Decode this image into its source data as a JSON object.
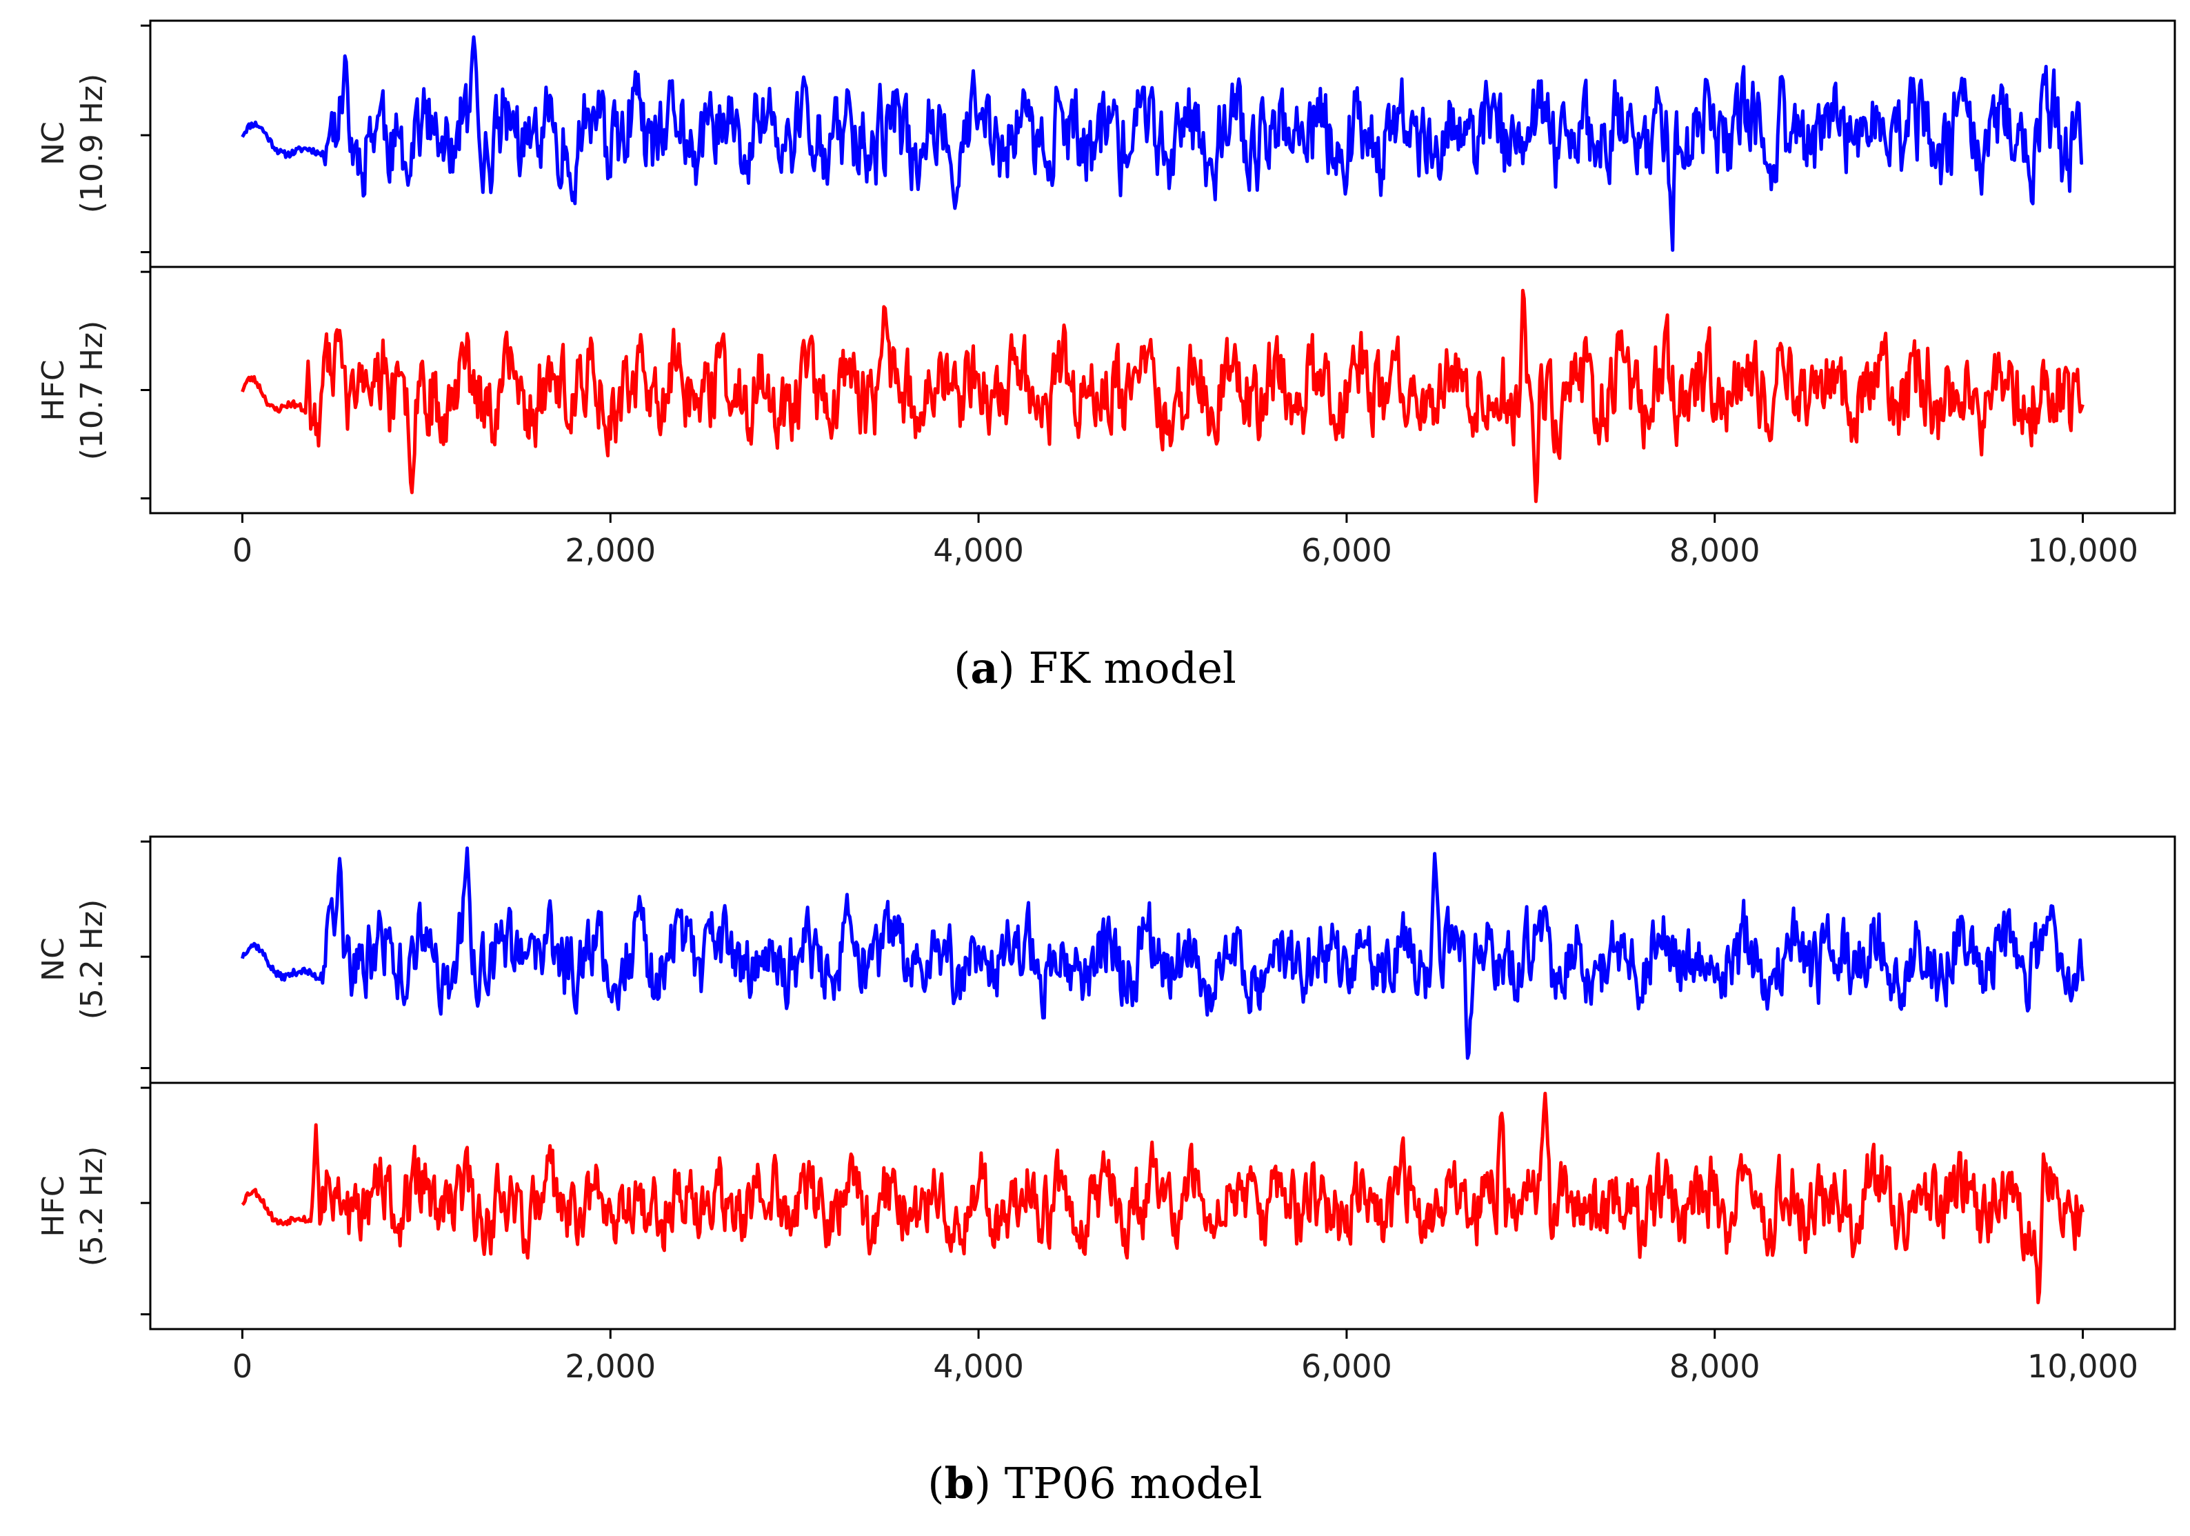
{
  "figures": [
    {
      "caption": {
        "letter": "a",
        "text": "FK model"
      },
      "x_ticks": [
        "0",
        "2,000",
        "4,000",
        "6,000",
        "8,000",
        "10,000"
      ],
      "panels": [
        {
          "name": "NC",
          "freq_label": "(10.9 Hz)",
          "color": "#0000ff"
        },
        {
          "name": "HFC",
          "freq_label": "(10.7 Hz)",
          "color": "#ff0000"
        }
      ]
    },
    {
      "caption": {
        "letter": "b",
        "text": "TP06 model"
      },
      "x_ticks": [
        "0",
        "2,000",
        "4,000",
        "6,000",
        "8,000",
        "10,000"
      ],
      "panels": [
        {
          "name": "NC",
          "freq_label": "(5.2 Hz)",
          "color": "#0000ff"
        },
        {
          "name": "HFC",
          "freq_label": "(5.2 Hz)",
          "color": "#ff0000"
        }
      ]
    }
  ],
  "chart_data": [
    {
      "type": "line",
      "title": "(a) FK model",
      "xlabel": "",
      "xlim": [
        -500,
        10500
      ],
      "x_ticks": [
        0,
        2000,
        4000,
        6000,
        8000,
        10000
      ],
      "x_range": [
        0,
        10000
      ],
      "series": [
        {
          "name": "NC (10.9 Hz)",
          "color": "#0000ff",
          "ylim": [
            -1.15,
            1.0
          ],
          "baseline": 0.0,
          "amplitude": 0.9,
          "seed": 11,
          "quiet_until": 450,
          "spikes": [
            [
              1260,
              0.95
            ],
            [
              7780,
              0.95
            ],
            [
              7770,
              -1.1
            ],
            [
              560,
              0.8
            ]
          ]
        },
        {
          "name": "HFC (10.7 Hz)",
          "color": "#ff0000",
          "ylim": [
            -1.05,
            1.05
          ],
          "baseline": 0.0,
          "amplitude": 0.85,
          "seed": 23,
          "quiet_until": 350,
          "spikes": [
            [
              6960,
              1.0
            ],
            [
              7030,
              -1.0
            ],
            [
              920,
              -0.9
            ],
            [
              3490,
              0.8
            ]
          ]
        }
      ]
    },
    {
      "type": "line",
      "title": "(b) TP06 model",
      "xlabel": "",
      "xlim": [
        -500,
        10500
      ],
      "x_ticks": [
        0,
        2000,
        4000,
        6000,
        8000,
        10000
      ],
      "x_range": [
        0,
        10000
      ],
      "series": [
        {
          "name": "NC (5.2 Hz)",
          "color": "#0000ff",
          "ylim": [
            -1.05,
            1.0
          ],
          "baseline": 0.0,
          "amplitude": 0.75,
          "seed": 37,
          "quiet_until": 420,
          "spikes": [
            [
              1220,
              0.95
            ],
            [
              6480,
              0.9
            ],
            [
              6660,
              -0.95
            ],
            [
              530,
              0.85
            ]
          ]
        },
        {
          "name": "HFC (5.2 Hz)",
          "color": "#ff0000",
          "ylim": [
            -1.05,
            1.0
          ],
          "baseline": 0.0,
          "amplitude": 0.75,
          "seed": 53,
          "quiet_until": 400,
          "spikes": [
            [
              7080,
              0.95
            ],
            [
              6840,
              0.8
            ],
            [
              9760,
              -0.95
            ],
            [
              400,
              0.65
            ]
          ]
        }
      ]
    }
  ]
}
